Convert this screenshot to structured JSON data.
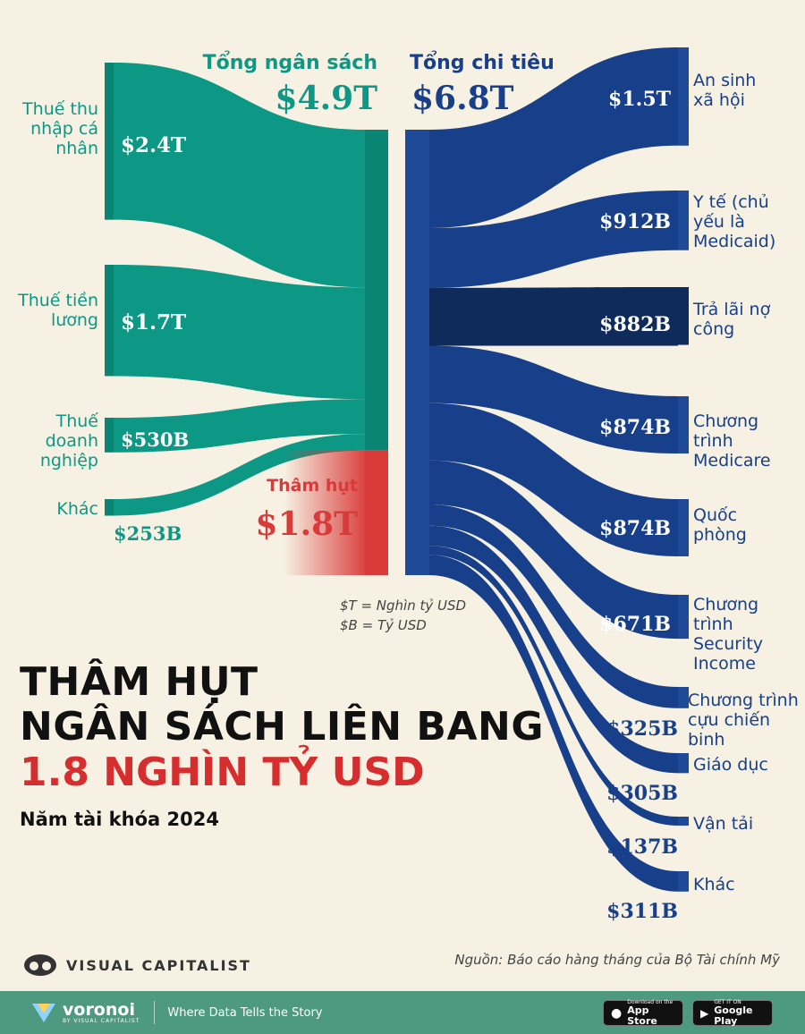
{
  "colors": {
    "revenue": "#0d9885",
    "revenue_dark": "#0a8473",
    "deficit": "#d93a3a",
    "spending": "#173f8a",
    "spending_bar": "#1f4a98",
    "interest": "#0f2b5c",
    "background": "#f6f1e2"
  },
  "chart_data": {
    "type": "sankey",
    "revenue_header": "Tổng ngân sách",
    "revenue_total": "$4.9T",
    "spending_header": "Tổng chi tiêu",
    "spending_total": "$6.8T",
    "deficit_label": "Thâm hụt",
    "deficit_value": "$1.8T",
    "sources": [
      {
        "name": "Thuế thu nhập cá nhân",
        "label": "$2.4T",
        "value": 2.4
      },
      {
        "name": "Thuế tiền lương",
        "label": "$1.7T",
        "value": 1.7
      },
      {
        "name": "Thuế doanh nghiệp",
        "label": "$530B",
        "value": 0.53
      },
      {
        "name": "Khác",
        "label": "$253B",
        "value": 0.253
      }
    ],
    "deficit": {
      "value": 1.8
    },
    "targets": [
      {
        "name": "An sinh xã hội",
        "label": "$1.5T",
        "value": 1.5
      },
      {
        "name": "Y tế (chủ yếu là Medicaid)",
        "label": "$912B",
        "value": 0.912
      },
      {
        "name": "Trả lãi nợ công",
        "label": "$882B",
        "value": 0.882
      },
      {
        "name": "Chương trình Medicare",
        "label": "$874B",
        "value": 0.874
      },
      {
        "name": "Quốc phòng",
        "label": "$874B",
        "value": 0.874
      },
      {
        "name": "Chương trình Security Income",
        "label": "$671B",
        "value": 0.671
      },
      {
        "name": "Chương trình cựu chiến binh",
        "label": "$325B",
        "value": 0.325
      },
      {
        "name": "Giáo dục",
        "label": "$305B",
        "value": 0.305
      },
      {
        "name": "Vận tải",
        "label": "$137B",
        "value": 0.137
      },
      {
        "name": "Khác",
        "label": "$311B",
        "value": 0.311
      }
    ],
    "units_note": [
      "$T = Nghìn tỷ USD",
      "$B = Tỷ USD"
    ]
  },
  "title": {
    "line1": "THÂM HỤT",
    "line2": "NGÂN SÁCH LIÊN BANG",
    "line3": "1.8 NGHÌN TỶ USD",
    "subtitle": "Năm tài khóa 2024"
  },
  "brand": "VISUAL CAPITALIST",
  "source": "Nguồn: Báo cáo hàng tháng của Bộ Tài chính Mỹ",
  "footer": {
    "logo": "voronoi",
    "logo_sub": "BY VISUAL CAPITALIST",
    "tagline": "Where Data Tells the Story",
    "appstore_small": "Download on the",
    "appstore_big": "App Store",
    "googleplay_small": "GET IT ON",
    "googleplay_big": "Google Play"
  }
}
